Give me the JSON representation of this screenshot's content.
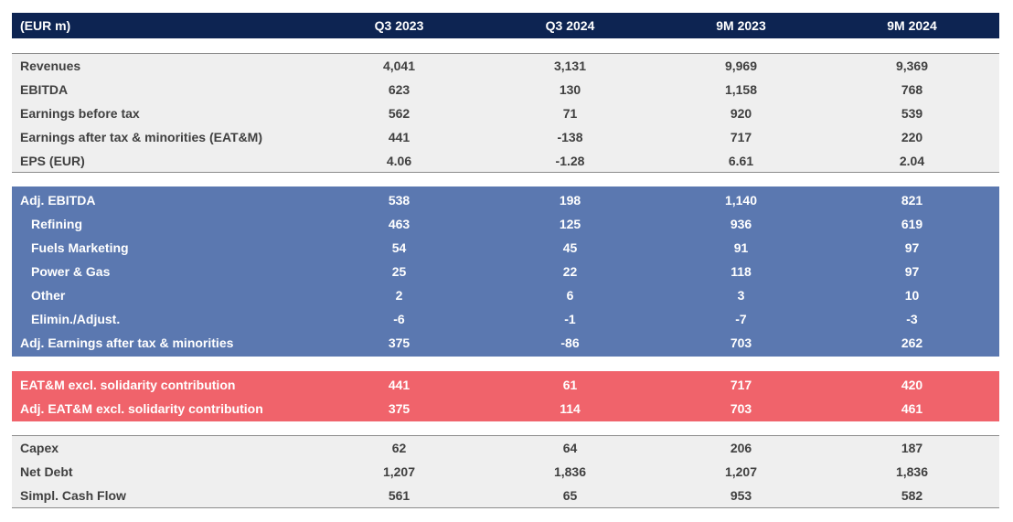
{
  "chart_data": {
    "type": "table",
    "columns": [
      "(EUR m)",
      "Q3 2023",
      "Q3 2024",
      "9M 2023",
      "9M 2024"
    ],
    "sections": [
      {
        "name": "income",
        "rows": [
          {
            "label": "Revenues",
            "values": [
              "4,041",
              "3,131",
              "9,969",
              "9,369"
            ]
          },
          {
            "label": "EBITDA",
            "values": [
              "623",
              "130",
              "1,158",
              "768"
            ]
          },
          {
            "label": "Earnings before tax",
            "values": [
              "562",
              "71",
              "920",
              "539"
            ]
          },
          {
            "label": "Earnings after tax & minorities (EAT&M)",
            "values": [
              "441",
              "-138",
              "717",
              "220"
            ]
          },
          {
            "label": "EPS (EUR)",
            "values": [
              "4.06",
              "-1.28",
              "6.61",
              "2.04"
            ]
          }
        ]
      },
      {
        "name": "adjusted",
        "rows": [
          {
            "label": "Adj. EBITDA",
            "values": [
              "538",
              "198",
              "1,140",
              "821"
            ]
          },
          {
            "label": "Refining",
            "values": [
              "463",
              "125",
              "936",
              "619"
            ]
          },
          {
            "label": "Fuels Marketing",
            "values": [
              "54",
              "45",
              "91",
              "97"
            ]
          },
          {
            "label": "Power & Gas",
            "values": [
              "25",
              "22",
              "118",
              "97"
            ]
          },
          {
            "label": "Other",
            "values": [
              "2",
              "6",
              "3",
              "10"
            ]
          },
          {
            "label": "Elimin./Adjust.",
            "values": [
              "-6",
              "-1",
              "-7",
              "-3"
            ]
          },
          {
            "label": "Adj. Earnings after tax & minorities",
            "values": [
              "375",
              "-86",
              "703",
              "262"
            ]
          }
        ]
      },
      {
        "name": "solidarity",
        "rows": [
          {
            "label": "EAT&M excl. solidarity contribution",
            "values": [
              "441",
              "61",
              "717",
              "420"
            ]
          },
          {
            "label": "Adj. EAT&M excl. solidarity contribution",
            "values": [
              "375",
              "114",
              "703",
              "461"
            ]
          }
        ]
      },
      {
        "name": "cash",
        "rows": [
          {
            "label": "Capex",
            "values": [
              "62",
              "64",
              "206",
              "187"
            ]
          },
          {
            "label": "Net Debt",
            "values": [
              "1,207",
              "1,836",
              "1,207",
              "1,836"
            ]
          },
          {
            "label": "Simpl. Cash Flow",
            "values": [
              "561",
              "65",
              "953",
              "582"
            ]
          }
        ]
      }
    ]
  },
  "colors": {
    "header_bg": "#0d2452",
    "grey_bg": "#efefef",
    "blue_bg": "#5b78b0",
    "red_bg": "#f0636b"
  }
}
